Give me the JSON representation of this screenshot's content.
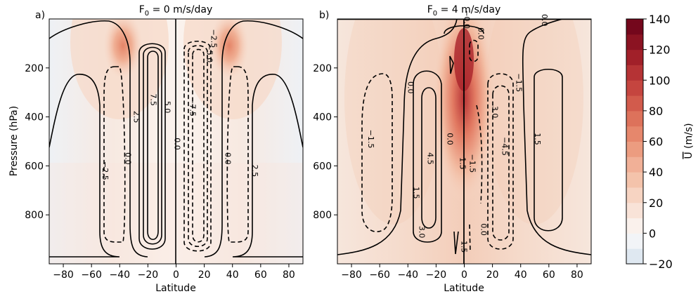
{
  "chart_data": [
    {
      "type": "contour",
      "panel": "a)",
      "title": "F₀ = 0 m/s/day",
      "title_main": "F",
      "title_sub": "0",
      "title_rest": " = 0 m/s/day",
      "xlabel": "Latitude",
      "ylabel": "Pressure (hPa)",
      "xlim": [
        -90,
        90
      ],
      "ylim": [
        1000,
        0
      ],
      "xticks": [
        -80,
        -60,
        -40,
        -20,
        0,
        20,
        40,
        60,
        80
      ],
      "yticks": [
        200,
        400,
        600,
        800
      ],
      "jet_cores": [
        {
          "lat": -40,
          "p": 120,
          "u": 70
        },
        {
          "lat": 40,
          "p": 120,
          "u": 70
        }
      ],
      "contour_labels": [
        {
          "text": "-2.5",
          "lat": -52,
          "p": 620
        },
        {
          "text": "2.5",
          "lat": -30,
          "p": 400
        },
        {
          "text": "0.0",
          "lat": -36,
          "p": 570
        },
        {
          "text": "7.5",
          "lat": -18,
          "p": 330
        },
        {
          "text": "5.0",
          "lat": -8,
          "p": 360
        },
        {
          "text": "0.0",
          "lat": -1,
          "p": 510
        },
        {
          "text": "-7.5",
          "lat": 10,
          "p": 360
        },
        {
          "text": "-5.0",
          "lat": 22,
          "p": 140
        },
        {
          "text": "-2.5",
          "lat": 25,
          "p": 80
        },
        {
          "text": "0.0",
          "lat": 35,
          "p": 570
        },
        {
          "text": "2.5",
          "lat": 54,
          "p": 620
        }
      ]
    },
    {
      "type": "contour",
      "panel": "b)",
      "title": "F₀ = 4 m/s/day",
      "title_main": "F",
      "title_sub": "0",
      "title_rest": " = 4 m/s/day",
      "xlabel": "Latitude",
      "ylabel": "",
      "xlim": [
        -90,
        90
      ],
      "ylim": [
        1000,
        0
      ],
      "xticks": [
        -80,
        -60,
        -40,
        -20,
        0,
        20,
        40,
        60,
        80
      ],
      "yticks": [
        200,
        400,
        600,
        800
      ],
      "jet_cores": [
        {
          "lat": 0,
          "p": 150,
          "u": 120
        }
      ],
      "contour_labels": [
        {
          "text": "0.0",
          "lat": 10,
          "p": 60
        },
        {
          "text": "0.0",
          "lat": 55,
          "p": 5
        },
        {
          "text": "-0.0",
          "lat": 0,
          "p": 2
        },
        {
          "text": "0.0",
          "lat": -40,
          "p": 280
        },
        {
          "text": "-1.5",
          "lat": 37,
          "p": 260
        },
        {
          "text": "3.0",
          "lat": 20,
          "p": 380
        },
        {
          "text": "-1.5",
          "lat": -68,
          "p": 490
        },
        {
          "text": "4.5",
          "lat": -26,
          "p": 570
        },
        {
          "text": "0.0",
          "lat": -12,
          "p": 490
        },
        {
          "text": "1.5",
          "lat": -3,
          "p": 590
        },
        {
          "text": "-1.5",
          "lat": 4,
          "p": 590
        },
        {
          "text": "-4.5",
          "lat": 27,
          "p": 520
        },
        {
          "text": "1.5",
          "lat": 50,
          "p": 490
        },
        {
          "text": "1.5",
          "lat": -36,
          "p": 710
        },
        {
          "text": "3.0",
          "lat": -32,
          "p": 870
        },
        {
          "text": "0.0",
          "lat": 12,
          "p": 860
        },
        {
          "text": "1.5",
          "lat": -2,
          "p": 930
        }
      ]
    }
  ],
  "colorbar": {
    "label_main": "U",
    "label_units": " (m/s)",
    "min": -20,
    "max": 140,
    "step": 10,
    "ticks": [
      140,
      120,
      100,
      80,
      60,
      40,
      20,
      0,
      -20
    ],
    "colors": {
      "-20": "#dfe8f1",
      "-10": "#f2f4f7",
      "0": "#faf1ec",
      "10": "#f9e3d8",
      "20": "#f7d4c2",
      "30": "#f4c3ab",
      "40": "#f1b097",
      "50": "#ec9c80",
      "60": "#e6876c",
      "70": "#dd725b",
      "80": "#d25b4c",
      "90": "#c5453f",
      "100": "#b53335",
      "110": "#a12029",
      "120": "#8b1322",
      "130": "#74071c"
    }
  }
}
